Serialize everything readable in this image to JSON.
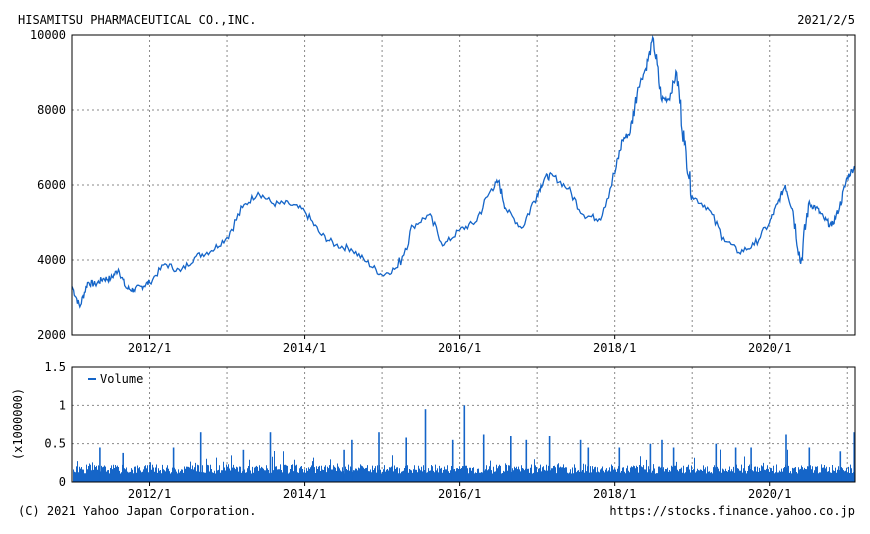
{
  "header": {
    "company": "HISAMITSU PHARMACEUTICAL CO.,INC.",
    "date": "2021/2/5"
  },
  "footer": {
    "copyright": "(C) 2021 Yahoo Japan Corporation.",
    "url": "https://stocks.finance.yahoo.co.jp"
  },
  "colors": {
    "line": "#1565c8",
    "grid": "#8a8a8a",
    "frame": "#000000"
  },
  "chart_data": [
    {
      "type": "line",
      "title": "",
      "xlabel": "",
      "ylabel": "",
      "xlim": [
        2011.0,
        2021.1
      ],
      "ylim": [
        2000,
        10000
      ],
      "y_ticks": [
        "10000",
        "8000",
        "6000",
        "4000",
        "2000"
      ],
      "x_ticks": [
        "2012/1",
        "2014/1",
        "2016/1",
        "2018/1",
        "2020/1"
      ],
      "grid": true,
      "series": [
        {
          "x": [
            2011.0,
            2011.1,
            2011.2,
            2011.3,
            2011.4,
            2011.5,
            2011.6,
            2011.7,
            2011.8,
            2011.9,
            2012.0,
            2012.2,
            2012.4,
            2012.6,
            2012.8,
            2013.0,
            2013.2,
            2013.4,
            2013.6,
            2013.8,
            2014.0,
            2014.2,
            2014.4,
            2014.6,
            2014.8,
            2015.0,
            2015.2,
            2015.4,
            2015.6,
            2015.8,
            2016.0,
            2016.2,
            2016.4,
            2016.5,
            2016.6,
            2016.8,
            2017.0,
            2017.1,
            2017.2,
            2017.4,
            2017.6,
            2017.8,
            2018.0,
            2018.1,
            2018.2,
            2018.3,
            2018.4,
            2018.5,
            2018.6,
            2018.7,
            2018.8,
            2018.9,
            2019.0,
            2019.2,
            2019.4,
            2019.6,
            2019.8,
            2020.0,
            2020.1,
            2020.2,
            2020.3,
            2020.4,
            2020.5,
            2020.6,
            2020.7,
            2020.8,
            2020.9,
            2021.0,
            2021.1
          ],
          "y": [
            3300,
            2750,
            3400,
            3350,
            3500,
            3500,
            3750,
            3250,
            3200,
            3300,
            3400,
            3900,
            3700,
            4100,
            4250,
            4600,
            5400,
            5800,
            5500,
            5500,
            5300,
            4700,
            4400,
            4300,
            3950,
            3600,
            3800,
            4900,
            5200,
            4400,
            4800,
            5000,
            5850,
            6100,
            5350,
            4850,
            5750,
            6200,
            6250,
            5900,
            5200,
            5100,
            6300,
            7200,
            7400,
            8600,
            9100,
            9900,
            8300,
            8300,
            9000,
            7100,
            5700,
            5400,
            4600,
            4200,
            4400,
            5000,
            5500,
            6000,
            5300,
            3900,
            5500,
            5400,
            5100,
            4900,
            5400,
            6200,
            6500
          ]
        }
      ]
    },
    {
      "type": "bar",
      "title": "",
      "xlabel": "",
      "ylabel": "(x1000000)",
      "xlim": [
        2011.0,
        2021.1
      ],
      "ylim": [
        0,
        1.5
      ],
      "y_ticks": [
        "1.5",
        "1",
        "0.5",
        "0"
      ],
      "x_ticks": [
        "2012/1",
        "2014/1",
        "2016/1",
        "2018/1",
        "2020/1"
      ],
      "grid": true,
      "legend": "top-left",
      "series": [
        {
          "name": "Volume",
          "baseline": 0.2,
          "spikes": [
            {
              "x": 2011.35,
              "v": 0.45
            },
            {
              "x": 2011.65,
              "v": 0.38
            },
            {
              "x": 2012.3,
              "v": 0.45
            },
            {
              "x": 2012.65,
              "v": 0.65
            },
            {
              "x": 2013.2,
              "v": 0.42
            },
            {
              "x": 2013.55,
              "v": 0.65
            },
            {
              "x": 2014.5,
              "v": 0.42
            },
            {
              "x": 2014.6,
              "v": 0.55
            },
            {
              "x": 2014.95,
              "v": 0.65
            },
            {
              "x": 2015.3,
              "v": 0.58
            },
            {
              "x": 2015.55,
              "v": 0.95
            },
            {
              "x": 2015.9,
              "v": 0.55
            },
            {
              "x": 2016.05,
              "v": 1.0
            },
            {
              "x": 2016.3,
              "v": 0.62
            },
            {
              "x": 2016.65,
              "v": 0.6
            },
            {
              "x": 2016.85,
              "v": 0.55
            },
            {
              "x": 2017.15,
              "v": 0.6
            },
            {
              "x": 2017.55,
              "v": 0.55
            },
            {
              "x": 2017.65,
              "v": 0.45
            },
            {
              "x": 2018.05,
              "v": 0.45
            },
            {
              "x": 2018.45,
              "v": 0.5
            },
            {
              "x": 2018.6,
              "v": 0.55
            },
            {
              "x": 2018.75,
              "v": 0.45
            },
            {
              "x": 2019.3,
              "v": 0.5
            },
            {
              "x": 2019.55,
              "v": 0.45
            },
            {
              "x": 2019.75,
              "v": 0.45
            },
            {
              "x": 2020.2,
              "v": 0.62
            },
            {
              "x": 2020.5,
              "v": 0.45
            },
            {
              "x": 2020.9,
              "v": 0.4
            },
            {
              "x": 2021.08,
              "v": 0.65
            }
          ]
        }
      ]
    }
  ]
}
